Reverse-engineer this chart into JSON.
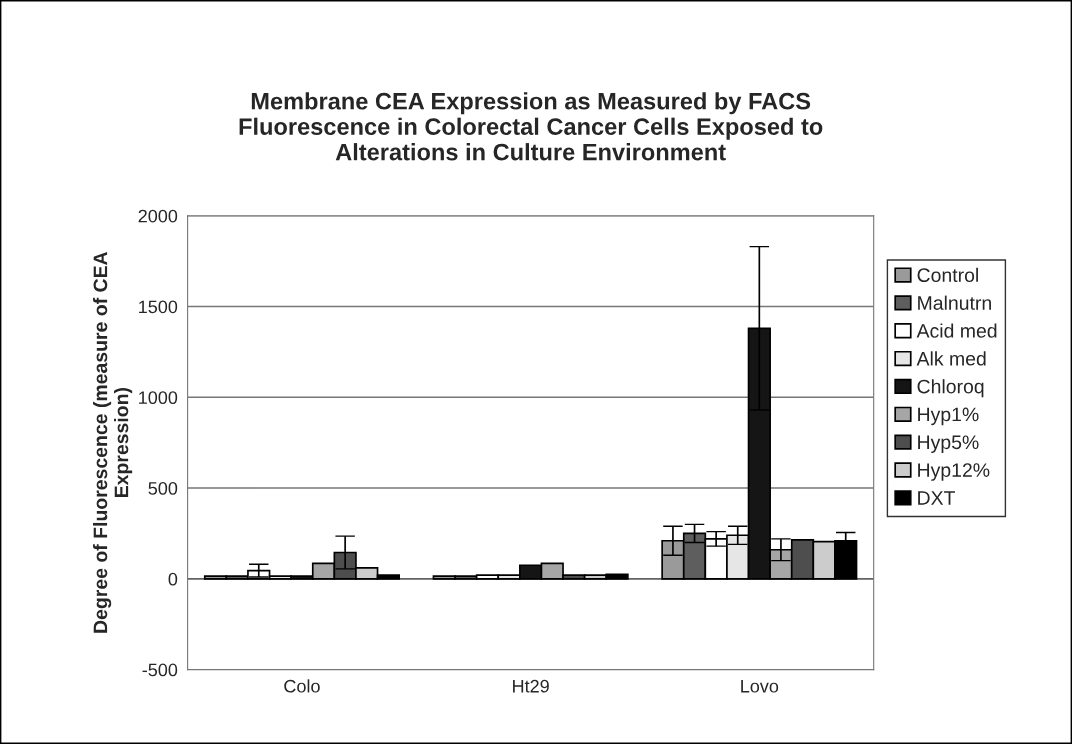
{
  "chart_data": {
    "type": "bar",
    "title": "Membrane CEA Expression as Measured by FACS\nFluorescence in Colorectal Cancer Cells Exposed to\nAlterations in Culture Environment",
    "ylabel": "Degree of Fluorescence (measure of CEA\nExpression)",
    "categories": [
      "Colo",
      "Ht29",
      "Lovo"
    ],
    "series": [
      {
        "name": "Control",
        "color": "#9a9a9a",
        "values": [
          15,
          15,
          210
        ],
        "errors": [
          null,
          null,
          80
        ]
      },
      {
        "name": "Malnutrn",
        "color": "#5e5e5e",
        "values": [
          15,
          15,
          250
        ],
        "errors": [
          null,
          null,
          50
        ]
      },
      {
        "name": "Acid med",
        "color": "#ffffff",
        "values": [
          45,
          20,
          220
        ],
        "errors": [
          35,
          null,
          40
        ]
      },
      {
        "name": "Alk med",
        "color": "#e6e6e6",
        "values": [
          15,
          20,
          240
        ],
        "errors": [
          null,
          null,
          50
        ]
      },
      {
        "name": "Chloroq",
        "color": "#151515",
        "values": [
          15,
          75,
          1380
        ],
        "errors": [
          null,
          null,
          450
        ]
      },
      {
        "name": "Hyp1%",
        "color": "#a6a6a6",
        "values": [
          85,
          85,
          160
        ],
        "errors": [
          null,
          null,
          60
        ]
      },
      {
        "name": "Hyp5%",
        "color": "#4e4e4e",
        "values": [
          145,
          20,
          215
        ],
        "errors": [
          90,
          null,
          null
        ]
      },
      {
        "name": "Hyp12%",
        "color": "#cccccc",
        "values": [
          60,
          20,
          205
        ],
        "errors": [
          null,
          null,
          null
        ]
      },
      {
        "name": "DXT",
        "color": "#000000",
        "values": [
          20,
          25,
          210
        ],
        "errors": [
          null,
          null,
          45
        ]
      }
    ],
    "ylim": [
      -500,
      2000
    ],
    "yticks": [
      -500,
      0,
      500,
      1000,
      1500,
      2000
    ],
    "grid": "y",
    "legend": "right"
  }
}
